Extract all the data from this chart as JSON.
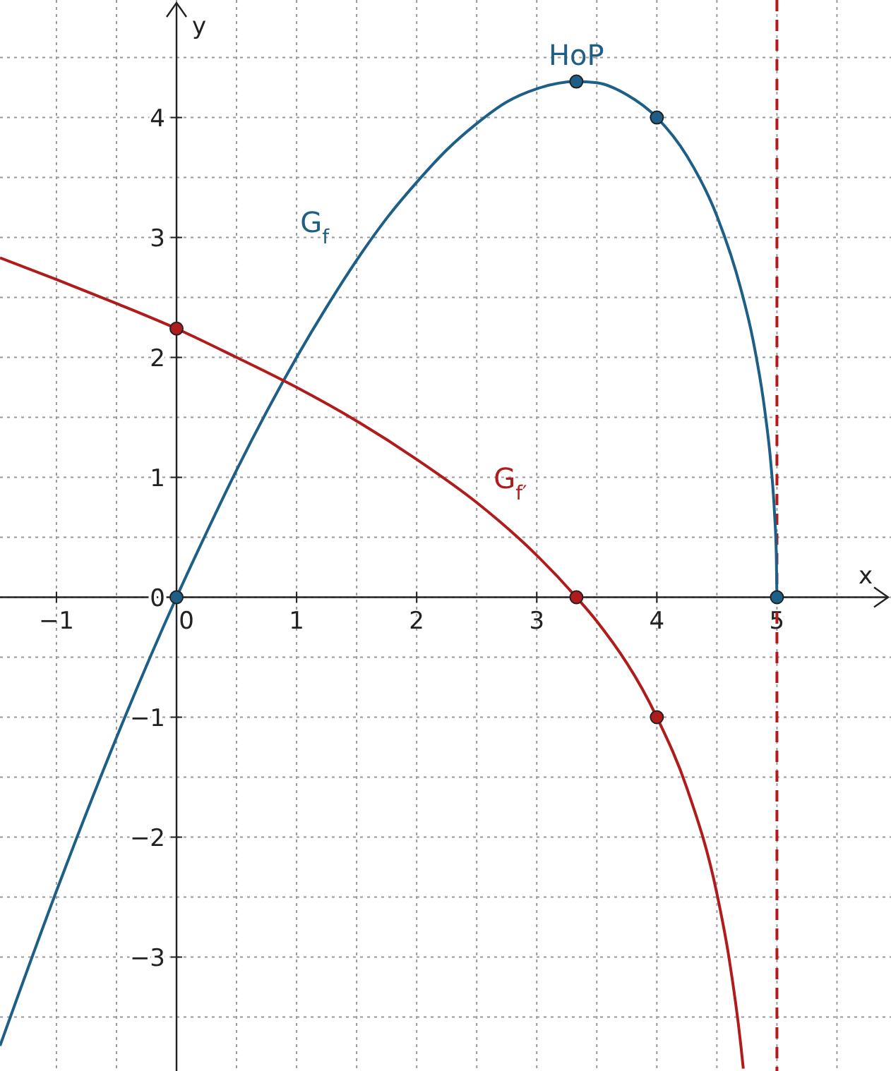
{
  "chart_data": {
    "type": "line",
    "xlabel": "x",
    "ylabel": "y",
    "xlim": [
      -1.47,
      5.95
    ],
    "ylim": [
      -3.95,
      4.98
    ],
    "xticks": [
      -1,
      {
        "value": -0.5,
        "label": null
      },
      0,
      {
        "value": 0.5,
        "label": null
      },
      1,
      {
        "value": 1.5,
        "label": null
      },
      2,
      {
        "value": 2.5,
        "label": null
      },
      3,
      {
        "value": 3.5,
        "label": null
      },
      4,
      {
        "value": 4.5,
        "label": null
      },
      5,
      {
        "value": 5.5,
        "label": null
      }
    ],
    "yticks": [
      {
        "value": -3.5,
        "label": null
      },
      -3,
      {
        "value": -2.5,
        "label": null
      },
      -2,
      {
        "value": -1.5,
        "label": null
      },
      -1,
      {
        "value": -0.5,
        "label": null
      },
      0,
      {
        "value": 0.5,
        "label": null
      },
      1,
      {
        "value": 1.5,
        "label": null
      },
      2,
      {
        "value": 2.5,
        "label": null
      },
      3,
      {
        "value": 3.5,
        "label": null
      },
      4,
      {
        "value": 4.5,
        "label": null
      }
    ],
    "grid": true,
    "line_style": "solid",
    "series": [
      {
        "name": "G$_{f}$",
        "color": "#1d5f86",
        "x": [
          -1.47,
          -1,
          -0.5,
          0,
          0.25,
          0.5,
          1,
          1.25,
          1.5,
          1.75,
          2,
          2.25,
          2.5,
          2.75,
          3,
          3.33,
          3.5,
          3.75,
          4,
          4.25,
          4.5,
          4.7,
          4.8,
          4.9,
          4.95,
          4.98,
          4.995,
          5
        ],
        "values": [
          -3.74,
          -2.45,
          -1.17,
          0,
          0.54,
          1.06,
          2,
          2.42,
          2.81,
          3.16,
          3.46,
          3.73,
          3.95,
          4.13,
          4.24,
          4.3,
          4.29,
          4.19,
          4,
          3.68,
          3.18,
          2.57,
          2.15,
          1.55,
          1.11,
          0.7,
          0.35,
          0
        ]
      },
      {
        "name": "G$_{f′}$",
        "color": "#b01c1c",
        "x": [
          -1.47,
          -1,
          -0.5,
          0,
          0.5,
          1,
          1.5,
          2,
          2.5,
          3,
          3.33,
          3.5,
          4,
          4.25,
          4.5,
          4.6,
          4.7,
          4.72
        ],
        "values": [
          2.83,
          2.65,
          2.45,
          2.24,
          2,
          1.75,
          1.47,
          1.15,
          0.79,
          0.35,
          0,
          -0.2,
          -1,
          -1.59,
          -2.47,
          -3,
          -3.74,
          -3.93
        ]
      },
      {
        "type": "scatter",
        "marker": "circle",
        "color": "#1d5f86",
        "x": [
          0,
          3.33,
          4,
          5
        ],
        "values": [
          0,
          4.3,
          4,
          0
        ]
      },
      {
        "type": "scatter",
        "marker": "circle",
        "color": "#b01c1c",
        "x": [
          0,
          3.33,
          4
        ],
        "values": [
          2.24,
          0,
          -1
        ]
      }
    ],
    "ref_lines": [
      {
        "axis": "x",
        "value": 5,
        "color": "#b01c1c",
        "line_style": "dashed"
      }
    ],
    "annotations": [
      {
        "text": "HoP",
        "x": 3.33,
        "y": 4.3
      }
    ]
  }
}
